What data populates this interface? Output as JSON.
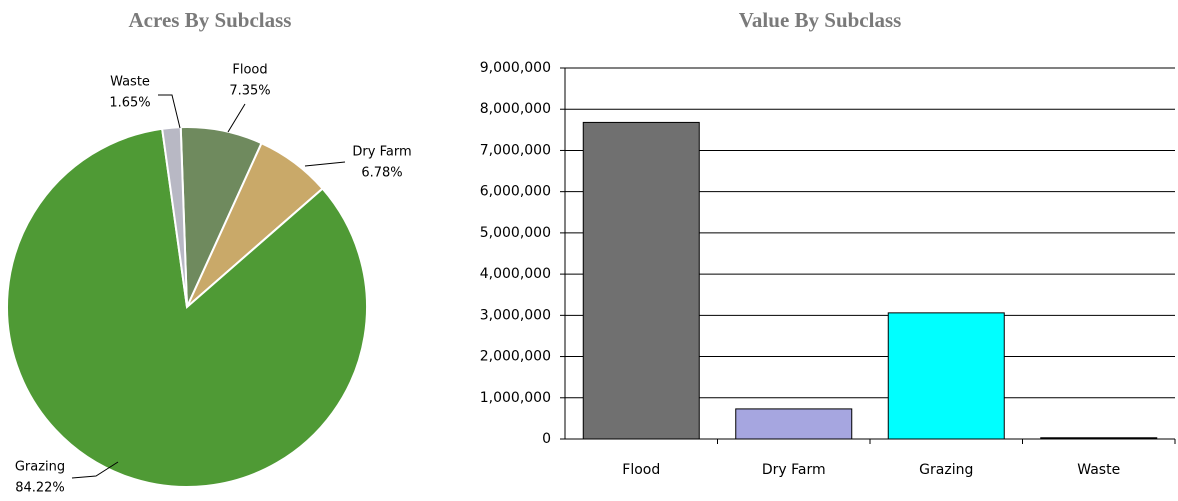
{
  "chart_data": [
    {
      "type": "pie",
      "title": "Acres By Subclass",
      "categories": [
        "Flood",
        "Dry Farm",
        "Grazing",
        "Waste"
      ],
      "values": [
        7.35,
        6.78,
        84.22,
        1.65
      ],
      "value_labels": [
        "7.35%",
        "6.78%",
        "84.22%",
        "1.65%"
      ],
      "colors": [
        "#6f8a5e",
        "#c9a969",
        "#4f9a35",
        "#b8b8c4"
      ]
    },
    {
      "type": "bar",
      "title": "Value By Subclass",
      "categories": [
        "Flood",
        "Dry Farm",
        "Grazing",
        "Waste"
      ],
      "values": [
        7680000,
        730000,
        3060000,
        30000
      ],
      "colors": [
        "#707070",
        "#a6a6e0",
        "#00ffff",
        "#000000"
      ],
      "ylim": [
        0,
        9000000
      ],
      "yticks": [
        0,
        {
          "value": 1000000,
          "label": "1,000,000"
        },
        {
          "value": 2000000,
          "label": "2,000,000"
        },
        {
          "value": 3000000,
          "label": "3,000,000"
        },
        {
          "value": 4000000,
          "label": "4,000,000"
        },
        {
          "value": 5000000,
          "label": "5,000,000"
        },
        {
          "value": 6000000,
          "label": "6,000,000"
        },
        {
          "value": 7000000,
          "label": "7,000,000"
        },
        {
          "value": 8000000,
          "label": "8,000,000"
        },
        {
          "value": 9000000,
          "label": "9,000,000"
        }
      ],
      "grid": true
    }
  ]
}
